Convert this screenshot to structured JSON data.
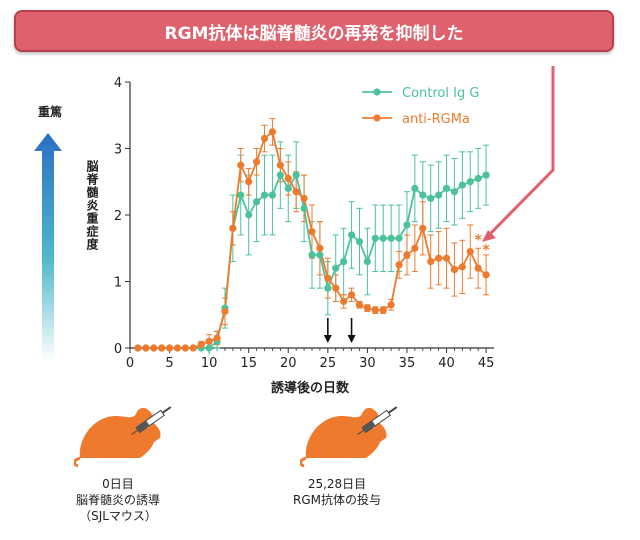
{
  "banner": {
    "title": "RGM抗体は脳脊髄炎の再発を抑制した"
  },
  "severity": {
    "label": "重篤"
  },
  "colors": {
    "control": "#4cc29c",
    "rgma": "#ee7a2e",
    "banner": "#e0616e",
    "arrow_pink": "#e0616e",
    "axis": "#333333",
    "severity_top": "#2a6fc4",
    "severity_bottom": "#ffffff"
  },
  "chart_data": {
    "type": "line",
    "xlabel": "誘導後の日数",
    "ylabel": "脳脊髄炎重症度",
    "xlim": [
      0,
      46
    ],
    "ylim": [
      0,
      4
    ],
    "xticks": [
      0,
      5,
      10,
      15,
      20,
      25,
      30,
      35,
      40,
      45
    ],
    "yticks": [
      0,
      1,
      2,
      3,
      4
    ],
    "legend_position": "top-right",
    "grid": false,
    "series": [
      {
        "name": "Control Ig G",
        "color_key": "control",
        "x": [
          1,
          2,
          3,
          4,
          5,
          6,
          7,
          8,
          9,
          10,
          11,
          12,
          13,
          14,
          15,
          16,
          17,
          18,
          19,
          20,
          21,
          22,
          23,
          24,
          25,
          26,
          27,
          28,
          29,
          30,
          31,
          32,
          33,
          34,
          35,
          36,
          37,
          38,
          39,
          40,
          41,
          42,
          43,
          44,
          45
        ],
        "y": [
          0,
          0,
          0,
          0,
          0,
          0,
          0,
          0,
          0,
          0,
          0.1,
          0.6,
          1.8,
          2.3,
          2.0,
          2.2,
          2.3,
          2.3,
          2.6,
          2.4,
          2.6,
          2.1,
          1.4,
          1.4,
          0.9,
          1.2,
          1.3,
          1.7,
          1.6,
          1.3,
          1.65,
          1.65,
          1.65,
          1.65,
          1.85,
          2.4,
          2.3,
          2.25,
          2.3,
          2.4,
          2.35,
          2.45,
          2.5,
          2.55,
          2.6
        ],
        "err": [
          0,
          0,
          0,
          0,
          0,
          0,
          0,
          0,
          0,
          0.1,
          0.15,
          0.3,
          0.5,
          0.6,
          0.6,
          0.6,
          0.6,
          0.6,
          0.5,
          0.5,
          0.5,
          0.5,
          0.5,
          0.5,
          0.4,
          0.5,
          0.5,
          0.5,
          0.5,
          0.5,
          0.5,
          0.5,
          0.5,
          0.5,
          0.5,
          0.5,
          0.5,
          0.5,
          0.5,
          0.5,
          0.5,
          0.5,
          0.45,
          0.45,
          0.45
        ]
      },
      {
        "name": "anti-RGMa",
        "color_key": "rgma",
        "x": [
          1,
          2,
          3,
          4,
          5,
          6,
          7,
          8,
          9,
          10,
          11,
          12,
          13,
          14,
          15,
          16,
          17,
          18,
          19,
          20,
          21,
          22,
          23,
          24,
          25,
          26,
          27,
          28,
          29,
          30,
          31,
          32,
          33,
          34,
          35,
          36,
          37,
          38,
          39,
          40,
          41,
          42,
          43,
          44,
          45
        ],
        "y": [
          0,
          0,
          0,
          0,
          0,
          0,
          0,
          0,
          0.05,
          0.1,
          0.15,
          0.55,
          1.8,
          2.75,
          2.5,
          2.8,
          3.15,
          3.25,
          2.75,
          2.55,
          2.35,
          2.25,
          1.75,
          1.5,
          1.05,
          0.9,
          0.7,
          0.8,
          0.65,
          0.6,
          0.57,
          0.57,
          0.65,
          1.25,
          1.4,
          1.5,
          1.8,
          1.3,
          1.35,
          1.35,
          1.18,
          1.22,
          1.45,
          1.2,
          1.1
        ],
        "err": [
          0,
          0,
          0,
          0,
          0,
          0,
          0,
          0,
          0.05,
          0.1,
          0.1,
          0.2,
          0.25,
          0.25,
          0.2,
          0.2,
          0.2,
          0.2,
          0.25,
          0.25,
          0.3,
          0.35,
          0.4,
          0.4,
          0.3,
          0.2,
          0.1,
          0.1,
          0.05,
          0.05,
          0.05,
          0.05,
          0.08,
          0.2,
          0.3,
          0.35,
          0.4,
          0.4,
          0.4,
          0.45,
          0.4,
          0.4,
          0.4,
          0.3,
          0.3
        ]
      }
    ],
    "significance": [
      {
        "x": 44,
        "y": 1.65,
        "label": "*"
      },
      {
        "x": 45,
        "y": 1.5,
        "label": "*"
      }
    ],
    "treatment_days": [
      25,
      28
    ]
  },
  "events": [
    {
      "day_label": "0日目",
      "line2": "脳脊髄炎の誘導",
      "line3": "（SJLマウス）"
    },
    {
      "day_label": "25,28日目",
      "line2": "RGM抗体の投与",
      "line3": ""
    }
  ]
}
